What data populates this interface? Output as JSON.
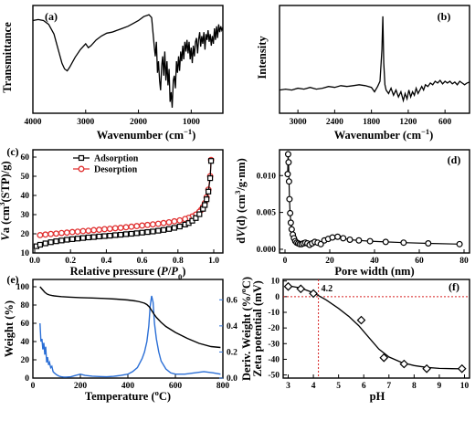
{
  "chart_data": [
    {
      "panel": "(a)",
      "type": "line",
      "xlabel": "Wavenumber (cm⁻¹)",
      "ylabel": "Transmittance",
      "xlim": [
        4000,
        400
      ],
      "xticks": [
        "4000",
        "3000",
        "2000",
        "1000"
      ],
      "series": [
        {
          "x": [
            4000,
            3900,
            3800,
            3700,
            3600,
            3550,
            3500,
            3450,
            3400,
            3350,
            3300,
            3200,
            3100,
            3000,
            2950,
            2900,
            2800,
            2700,
            2600,
            2500,
            2400,
            2300,
            2200,
            2100,
            2000,
            1900,
            1800,
            1750,
            1700,
            1680,
            1660,
            1640,
            1620,
            1600,
            1580,
            1560,
            1540,
            1520,
            1500,
            1480,
            1460,
            1440,
            1420,
            1400,
            1380,
            1360,
            1340,
            1320,
            1300,
            1280,
            1260,
            1240,
            1220,
            1200,
            1180,
            1160,
            1140,
            1120,
            1100,
            1080,
            1060,
            1040,
            1020,
            1000,
            980,
            960,
            940,
            920,
            900,
            880,
            860,
            840,
            820,
            800,
            780,
            760,
            740,
            720,
            700,
            680,
            660,
            640,
            620,
            600,
            580,
            560,
            540,
            520,
            500,
            480,
            460,
            440,
            420,
            400
          ],
          "y": [
            0.92,
            0.93,
            0.92,
            0.88,
            0.78,
            0.68,
            0.58,
            0.48,
            0.42,
            0.4,
            0.44,
            0.54,
            0.62,
            0.68,
            0.64,
            0.66,
            0.72,
            0.76,
            0.79,
            0.8,
            0.82,
            0.84,
            0.86,
            0.89,
            0.92,
            0.96,
            0.98,
            0.95,
            0.65,
            0.55,
            0.7,
            0.38,
            0.5,
            0.3,
            0.2,
            0.45,
            0.55,
            0.35,
            0.6,
            0.3,
            0.5,
            0.25,
            0.42,
            0.08,
            0.18,
            0.02,
            0.3,
            0.35,
            0.22,
            0.5,
            0.38,
            0.55,
            0.4,
            0.6,
            0.5,
            0.66,
            0.52,
            0.7,
            0.6,
            0.72,
            0.58,
            0.7,
            0.52,
            0.64,
            0.48,
            0.66,
            0.55,
            0.7,
            0.74,
            0.58,
            0.72,
            0.8,
            0.65,
            0.76,
            0.68,
            0.8,
            0.62,
            0.78,
            0.72,
            0.82,
            0.7,
            0.78,
            0.66,
            0.76,
            0.68,
            0.84,
            0.72,
            0.86,
            0.74,
            0.88,
            0.8,
            0.86,
            0.82,
            0.85
          ]
        }
      ]
    },
    {
      "panel": "(b)",
      "type": "line",
      "xlabel": "Wavenumber (cm⁻¹)",
      "ylabel": "Intensity",
      "xlim": [
        3300,
        200
      ],
      "xticks": [
        "3000",
        "2400",
        "1800",
        "1200",
        "600"
      ],
      "series": [
        {
          "x": [
            3300,
            3200,
            3100,
            3000,
            2900,
            2800,
            2700,
            2600,
            2500,
            2400,
            2300,
            2200,
            2100,
            2000,
            1900,
            1800,
            1750,
            1700,
            1660,
            1630,
            1615,
            1600,
            1580,
            1560,
            1520,
            1480,
            1440,
            1400,
            1360,
            1320,
            1280,
            1250,
            1220,
            1190,
            1160,
            1130,
            1100,
            1070,
            1040,
            1010,
            980,
            950,
            920,
            880,
            840,
            800,
            760,
            720,
            680,
            640,
            600,
            560,
            520,
            480,
            440,
            400,
            360,
            320,
            280,
            240,
            200
          ],
          "y": [
            0.14,
            0.15,
            0.14,
            0.16,
            0.15,
            0.17,
            0.15,
            0.16,
            0.18,
            0.17,
            0.19,
            0.18,
            0.19,
            0.2,
            0.19,
            0.17,
            0.12,
            0.18,
            0.24,
            0.6,
            0.98,
            0.45,
            0.2,
            0.14,
            0.1,
            0.16,
            0.08,
            0.14,
            0.06,
            0.12,
            0.02,
            0.1,
            0.04,
            0.14,
            0.06,
            0.12,
            0.08,
            0.16,
            0.1,
            0.14,
            0.18,
            0.14,
            0.2,
            0.18,
            0.22,
            0.2,
            0.24,
            0.22,
            0.25,
            0.21,
            0.24,
            0.22,
            0.24,
            0.21,
            0.23,
            0.2,
            0.24,
            0.22,
            0.2,
            0.22,
            0.23
          ]
        }
      ]
    },
    {
      "panel": "(c)",
      "type": "line",
      "xlabel": "Relative pressure (P/P0)",
      "ylabel": "Va (cm³(STP)/g)",
      "xlim": [
        0,
        1.0
      ],
      "ylim": [
        10,
        60
      ],
      "xticks": [
        "0.0",
        "0.2",
        "0.4",
        "0.6",
        "0.8",
        "1.0"
      ],
      "yticks": [
        "10",
        "20",
        "30",
        "40",
        "50",
        "60"
      ],
      "legend_position": "top-left",
      "series": [
        {
          "name": "Adsorption",
          "color": "#000000",
          "marker": "square",
          "x": [
            0.01,
            0.03,
            0.06,
            0.09,
            0.12,
            0.15,
            0.18,
            0.21,
            0.24,
            0.27,
            0.3,
            0.33,
            0.36,
            0.39,
            0.42,
            0.45,
            0.48,
            0.51,
            0.54,
            0.57,
            0.6,
            0.63,
            0.66,
            0.69,
            0.72,
            0.75,
            0.78,
            0.81,
            0.84,
            0.86,
            0.88,
            0.9,
            0.92,
            0.94,
            0.95,
            0.96,
            0.97,
            0.98,
            0.985
          ],
          "y": [
            13.5,
            14.3,
            15.0,
            15.6,
            16.1,
            16.5,
            16.9,
            17.2,
            17.5,
            17.8,
            18.1,
            18.3,
            18.6,
            18.8,
            19.0,
            19.3,
            19.5,
            19.8,
            20.0,
            20.3,
            20.6,
            20.9,
            21.2,
            21.6,
            22.0,
            22.5,
            23.1,
            23.8,
            24.8,
            25.6,
            26.8,
            28.2,
            30.2,
            33.0,
            35.0,
            38.0,
            42.0,
            49.0,
            58.0
          ]
        },
        {
          "name": "Desorption",
          "color": "#e03030",
          "marker": "circle",
          "x": [
            0.985,
            0.98,
            0.97,
            0.96,
            0.95,
            0.94,
            0.93,
            0.92,
            0.9,
            0.88,
            0.86,
            0.84,
            0.81,
            0.78,
            0.75,
            0.72,
            0.69,
            0.66,
            0.63,
            0.6,
            0.57,
            0.54,
            0.51,
            0.48,
            0.45,
            0.42,
            0.39,
            0.36,
            0.33,
            0.3,
            0.27,
            0.24,
            0.21,
            0.18,
            0.15,
            0.12,
            0.09,
            0.06,
            0.03
          ],
          "y": [
            58.5,
            50.0,
            43.0,
            39.0,
            36.0,
            34.0,
            32.5,
            31.5,
            30.0,
            29.0,
            28.3,
            27.7,
            27.0,
            26.5,
            26.0,
            25.6,
            25.2,
            24.9,
            24.6,
            24.3,
            24.0,
            23.7,
            23.4,
            23.1,
            22.9,
            22.6,
            22.4,
            22.1,
            21.9,
            21.6,
            21.4,
            21.1,
            20.9,
            20.6,
            20.4,
            20.1,
            19.9,
            19.6,
            19.3
          ]
        }
      ]
    },
    {
      "panel": "(d)",
      "type": "line",
      "xlabel": "Pore width (nm)",
      "ylabel": "dV(d) (cm³/g·nm)",
      "xlim": [
        0,
        80
      ],
      "ylim": [
        -0.0005,
        0.0135
      ],
      "xticks": [
        "0",
        "20",
        "40",
        "60",
        "80"
      ],
      "yticks": [
        "0.000",
        "0.005",
        "0.010"
      ],
      "series": [
        {
          "marker": "circle",
          "x": [
            1.2,
            1.4,
            1.6,
            1.8,
            2.0,
            2.3,
            2.6,
            3.0,
            3.5,
            4.0,
            4.6,
            5.2,
            5.9,
            6.6,
            7.4,
            8.2,
            9.1,
            10.0,
            11.0,
            12.1,
            13.3,
            14.6,
            16.0,
            17.6,
            19.3,
            21.2,
            23.5,
            26.0,
            29.0,
            33.0,
            38.0,
            45.0,
            53.0,
            64.0,
            78.0
          ],
          "y": [
            0.0102,
            0.0129,
            0.0118,
            0.0092,
            0.0068,
            0.0049,
            0.0036,
            0.0027,
            0.002,
            0.0015,
            0.0011,
            0.0009,
            0.0008,
            0.0007,
            0.0007,
            0.0008,
            0.0009,
            0.0008,
            0.0006,
            0.0008,
            0.001,
            0.0009,
            0.0007,
            0.0012,
            0.0014,
            0.0016,
            0.0017,
            0.0015,
            0.0013,
            0.0012,
            0.0011,
            0.001,
            0.0009,
            0.0008,
            0.0007
          ]
        }
      ]
    },
    {
      "panel": "(e)",
      "type": "line",
      "xlabel": "Temperature (°C)",
      "ylabel": "Weight (%)",
      "ylabel_right": "Deriv. Weight (%/°C)",
      "xlim": [
        0,
        800
      ],
      "ylim": [
        0,
        100
      ],
      "ylim_right": [
        0,
        0.7
      ],
      "xticks": [
        "0",
        "200",
        "400",
        "600",
        "800"
      ],
      "yticks": [
        "0",
        "20",
        "40",
        "60",
        "80",
        "100"
      ],
      "yticks_right": [
        "0.0",
        "0.2",
        "0.4",
        "0.6"
      ],
      "series": [
        {
          "name": "Weight",
          "color": "#000000",
          "axis": "left",
          "x": [
            30,
            40,
            50,
            60,
            70,
            80,
            90,
            100,
            120,
            150,
            200,
            250,
            300,
            350,
            400,
            430,
            450,
            470,
            480,
            490,
            500,
            510,
            520,
            540,
            560,
            600,
            650,
            700,
            750,
            790
          ],
          "y": [
            100,
            97,
            94,
            92,
            91,
            90.4,
            90,
            89.7,
            89.2,
            88.7,
            88.1,
            87.7,
            87.2,
            86.5,
            85.5,
            84.5,
            83.5,
            82.0,
            80.5,
            78.0,
            74.0,
            70.0,
            66.5,
            61.0,
            56.5,
            50.0,
            43.5,
            38.0,
            34.5,
            33.5
          ]
        },
        {
          "name": "Deriv. Weight",
          "color": "#2b6fd6",
          "axis": "right",
          "x": [
            30,
            34,
            38,
            42,
            46,
            50,
            54,
            58,
            62,
            66,
            70,
            75,
            80,
            85,
            90,
            100,
            110,
            120,
            130,
            140,
            160,
            180,
            200,
            220,
            250,
            280,
            310,
            340,
            370,
            400,
            420,
            440,
            460,
            470,
            480,
            488,
            494,
            500,
            506,
            512,
            520,
            530,
            540,
            560,
            580,
            600,
            640,
            680,
            720,
            760,
            790
          ],
          "y": [
            0.42,
            0.28,
            0.3,
            0.22,
            0.27,
            0.18,
            0.24,
            0.12,
            0.16,
            0.1,
            0.12,
            0.08,
            0.09,
            0.05,
            0.04,
            0.025,
            0.015,
            0.01,
            0.008,
            0.008,
            0.01,
            0.02,
            0.03,
            0.02,
            0.015,
            0.012,
            0.01,
            0.013,
            0.02,
            0.03,
            0.05,
            0.08,
            0.15,
            0.2,
            0.28,
            0.4,
            0.55,
            0.63,
            0.58,
            0.42,
            0.3,
            0.2,
            0.13,
            0.07,
            0.04,
            0.03,
            0.03,
            0.04,
            0.05,
            0.04,
            0.03
          ]
        }
      ]
    },
    {
      "panel": "(f)",
      "type": "line",
      "xlabel": "pH",
      "ylabel": "Zeta potential (mV)",
      "xlim": [
        2.8,
        10.2
      ],
      "ylim": [
        -52,
        11
      ],
      "xticks": [
        "3",
        "4",
        "5",
        "6",
        "7",
        "8",
        "9",
        "10"
      ],
      "yticks": [
        "10",
        "0",
        "-10",
        "-20",
        "-30",
        "-40",
        "-50"
      ],
      "annotation": "4.2",
      "annotation_x": 4.2,
      "series": [
        {
          "marker": "diamond",
          "x": [
            3.0,
            3.5,
            4.0,
            5.9,
            6.8,
            7.6,
            8.5,
            9.9
          ],
          "y": [
            6.5,
            5.0,
            2.0,
            -15.0,
            -39.0,
            -43.0,
            -46.0,
            -46.0
          ]
        }
      ]
    }
  ]
}
